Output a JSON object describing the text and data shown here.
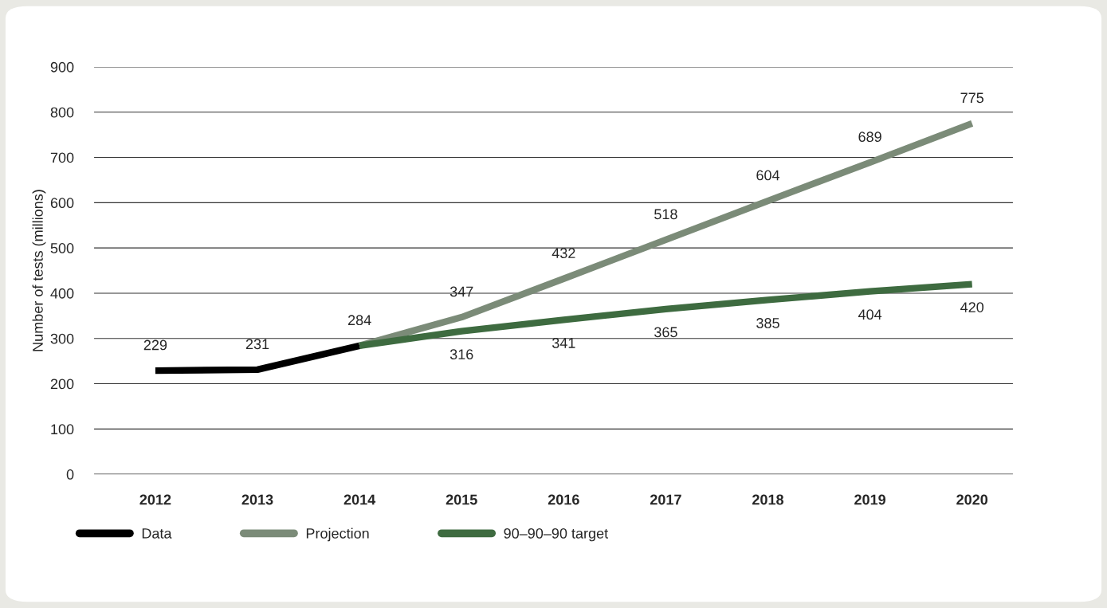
{
  "chart_data": {
    "type": "line",
    "ylabel": "Number of tests (millions)",
    "categories": [
      "2012",
      "2013",
      "2014",
      "2015",
      "2016",
      "2017",
      "2018",
      "2019",
      "2020"
    ],
    "series": [
      {
        "name": "Data",
        "color": "#000000",
        "values": [
          229,
          231,
          284,
          null,
          null,
          null,
          null,
          null,
          null
        ],
        "value_labels": [
          "229",
          "231",
          "284",
          null,
          null,
          null,
          null,
          null,
          null
        ]
      },
      {
        "name": "Projection",
        "color": "#7b8b78",
        "values": [
          null,
          null,
          284,
          347,
          432,
          518,
          604,
          689,
          775
        ],
        "value_labels": [
          null,
          null,
          null,
          "347",
          "432",
          "518",
          "604",
          "689",
          "775"
        ]
      },
      {
        "name": "90–90–90 target",
        "color": "#3e6b40",
        "values": [
          null,
          null,
          284,
          316,
          341,
          365,
          385,
          404,
          420
        ],
        "value_labels": [
          null,
          null,
          null,
          "316",
          "341",
          "365",
          "385",
          "404",
          "420"
        ]
      }
    ],
    "ylim": [
      0,
      900
    ],
    "yticks": [
      0,
      100,
      200,
      300,
      400,
      500,
      600,
      700,
      800,
      900
    ],
    "grid": "y",
    "legend": "bottom left",
    "marker": "none",
    "line_style": "solid"
  }
}
